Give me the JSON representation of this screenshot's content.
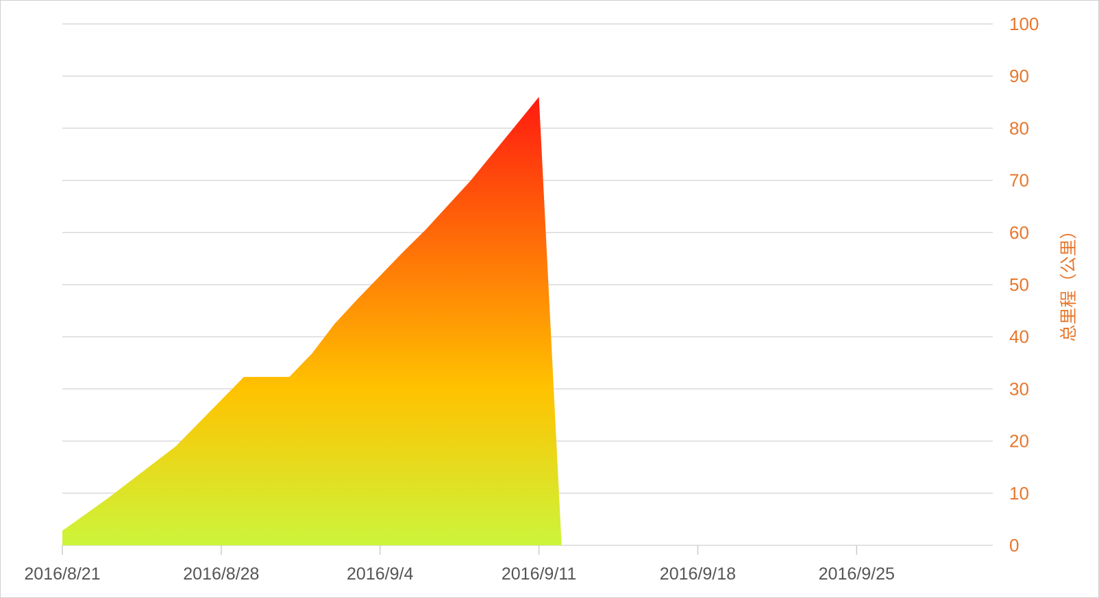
{
  "chart_data": {
    "type": "area",
    "title": "",
    "xlabel": "",
    "ylabel": "总里程（公里）",
    "y_axis_side": "right",
    "ylim": [
      0,
      100
    ],
    "y_ticks": [
      0,
      10,
      20,
      30,
      40,
      50,
      60,
      70,
      80,
      90,
      100
    ],
    "xlim": [
      "2016/8/21",
      "2016/10/1"
    ],
    "x_tick_labels": [
      "2016/8/21",
      "2016/8/28",
      "2016/9/4",
      "2016/9/11",
      "2016/9/18",
      "2016/9/25"
    ],
    "grid": true,
    "legend": "none",
    "colors": {
      "gradient_top": "#ff1a10",
      "gradient_mid": "#ffc200",
      "gradient_bottom": "#ccf53b",
      "axis_text": "#e8762b",
      "tick_text": "#555555",
      "grid": "#d9d9d9"
    },
    "series": [
      {
        "values": [
          {
            "x": "2016/8/21",
            "y": 2.8
          },
          {
            "x": "2016/8/23",
            "y": 9.0
          },
          {
            "x": "2016/8/26",
            "y": 19.0
          },
          {
            "x": "2016/8/29",
            "y": 32.3
          },
          {
            "x": "2016/8/31",
            "y": 32.3
          },
          {
            "x": "2016/9/1",
            "y": 36.8
          },
          {
            "x": "2016/9/2",
            "y": 42.5
          },
          {
            "x": "2016/9/3",
            "y": 47.2
          },
          {
            "x": "2016/9/5",
            "y": 56.2
          },
          {
            "x": "2016/9/6",
            "y": 60.5
          },
          {
            "x": "2016/9/8",
            "y": 70.0
          },
          {
            "x": "2016/9/11",
            "y": 86.0
          },
          {
            "x": "2016/9/12",
            "y": 0
          }
        ]
      }
    ]
  }
}
